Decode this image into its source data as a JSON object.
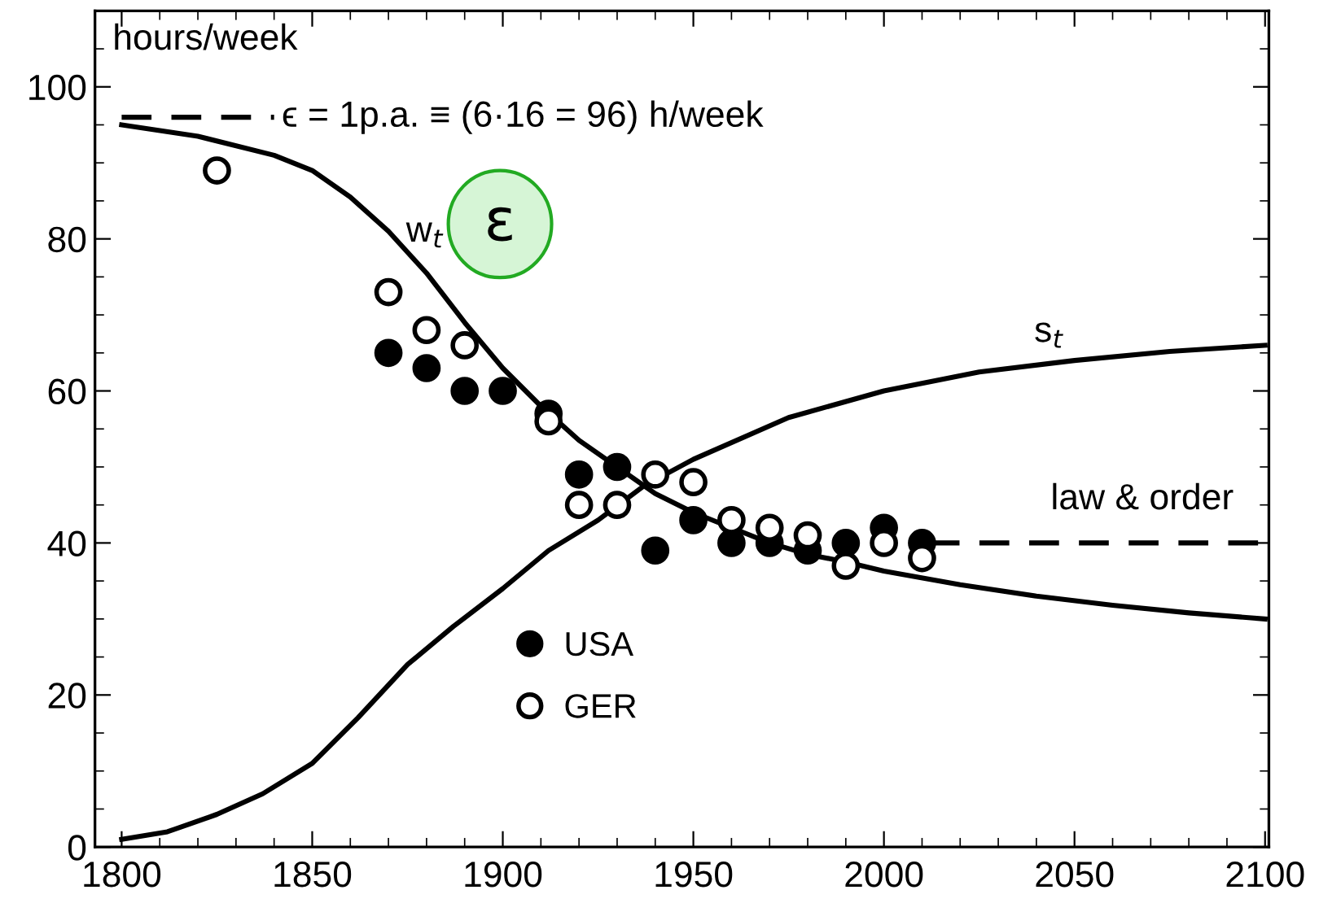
{
  "chart_data": {
    "type": "line",
    "ylabel": "hours/week",
    "xlim": [
      1793,
      2101
    ],
    "ylim": [
      0,
      110
    ],
    "xticks": [
      1800,
      {
        "value": 1810,
        "label": null
      },
      {
        "value": 1820,
        "label": null
      },
      {
        "value": 1830,
        "label": null
      },
      {
        "value": 1840,
        "label": null
      },
      1850,
      {
        "value": 1860,
        "label": null
      },
      {
        "value": 1870,
        "label": null
      },
      {
        "value": 1880,
        "label": null
      },
      {
        "value": 1890,
        "label": null
      },
      1900,
      {
        "value": 1910,
        "label": null
      },
      {
        "value": 1920,
        "label": null
      },
      {
        "value": 1930,
        "label": null
      },
      {
        "value": 1940,
        "label": null
      },
      1950,
      {
        "value": 1960,
        "label": null
      },
      {
        "value": 1970,
        "label": null
      },
      {
        "value": 1980,
        "label": null
      },
      {
        "value": 1990,
        "label": null
      },
      2000,
      {
        "value": 2010,
        "label": null
      },
      {
        "value": 2020,
        "label": null
      },
      {
        "value": 2030,
        "label": null
      },
      {
        "value": 2040,
        "label": null
      },
      2050,
      {
        "value": 2060,
        "label": null
      },
      {
        "value": 2070,
        "label": null
      },
      {
        "value": 2080,
        "label": null
      },
      {
        "value": 2090,
        "label": null
      },
      2100
    ],
    "yticks": [
      0,
      {
        "value": 5,
        "label": null
      },
      {
        "value": 10,
        "label": null
      },
      {
        "value": 15,
        "label": null
      },
      20,
      {
        "value": 25,
        "label": null
      },
      {
        "value": 30,
        "label": null
      },
      {
        "value": 35,
        "label": null
      },
      40,
      {
        "value": 45,
        "label": null
      },
      {
        "value": 50,
        "label": null
      },
      {
        "value": 55,
        "label": null
      },
      60,
      {
        "value": 65,
        "label": null
      },
      {
        "value": 70,
        "label": null
      },
      {
        "value": 75,
        "label": null
      },
      80,
      {
        "value": 85,
        "label": null
      },
      {
        "value": 90,
        "label": null
      },
      {
        "value": 95,
        "label": null
      },
      100,
      {
        "value": 105,
        "label": null
      }
    ],
    "grid": false,
    "legend": "bottom",
    "series": [
      {
        "color": "#000000",
        "marker": "none",
        "line_style": "solid",
        "x": [
          1800,
          1820,
          1840,
          1850,
          1860,
          1870,
          1880,
          1890,
          1900,
          1910,
          1920,
          1930,
          1940,
          1950,
          1960,
          1970,
          1980,
          1990,
          2000,
          2020,
          2040,
          2060,
          2080,
          2100
        ],
        "values": [
          95,
          93.5,
          91,
          89,
          85.5,
          81,
          75.5,
          69,
          63,
          58,
          53.5,
          50,
          46.5,
          44,
          42,
          40,
          38.5,
          37.5,
          36.3,
          34.5,
          33,
          31.8,
          30.8,
          30
        ]
      },
      {
        "color": "#000000",
        "marker": "none",
        "line_style": "solid",
        "x": [
          1800,
          1812,
          1825,
          1837,
          1850,
          1862,
          1875,
          1887,
          1900,
          1912,
          1925,
          1937,
          1950,
          1975,
          2000,
          2025,
          2050,
          2075,
          2100
        ],
        "values": [
          1,
          2,
          4.3,
          7,
          11,
          17,
          24,
          29,
          34,
          39,
          43,
          47.5,
          51,
          56.5,
          60,
          62.5,
          64,
          65.2,
          66
        ]
      },
      {
        "color": "#000000",
        "marker": "none",
        "line_style": "dashed",
        "x": [
          1800,
          1840
        ],
        "values": [
          96,
          96
        ]
      },
      {
        "color": "#000000",
        "marker": "none",
        "line_style": "dashed",
        "x": [
          2012,
          2100
        ],
        "values": [
          40,
          40
        ]
      },
      {
        "type": "scatter",
        "name": "USA",
        "color": "#000000",
        "marker": "circle",
        "x": [
          1870,
          1880,
          1890,
          1900,
          1912,
          1920,
          1930,
          1940,
          1950,
          1960,
          1970,
          1980,
          1990,
          2000,
          2010
        ],
        "values": [
          65,
          63,
          60,
          60,
          57,
          49,
          50,
          39,
          43,
          40,
          40,
          39,
          40,
          42,
          40
        ]
      },
      {
        "type": "scatter",
        "name": "GER",
        "color": "#ffffff",
        "marker": "circle",
        "x": [
          1825,
          1870,
          1880,
          1890,
          1912,
          1920,
          1930,
          1940,
          1950,
          1960,
          1970,
          1980,
          1990,
          2000,
          2010
        ],
        "values": [
          89,
          73,
          68,
          66,
          56,
          45,
          45,
          49,
          48,
          43,
          42,
          41,
          37,
          40,
          38
        ]
      }
    ],
    "annotations": [
      {
        "text": "ϵ = 1p.a. ≡ (6·16 = 96) h/week",
        "x": 1842,
        "y": 96
      },
      "w$_{t}$",
      "s$_{t}$",
      "law & order",
      "ε"
    ]
  }
}
